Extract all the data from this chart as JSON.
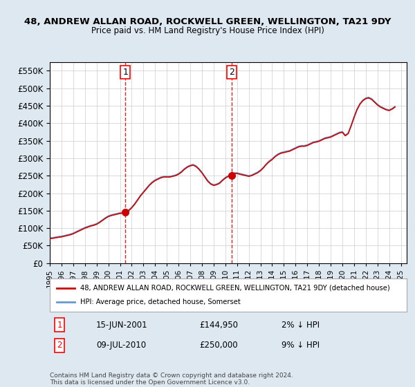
{
  "title": "48, ANDREW ALLAN ROAD, ROCKWELL GREEN, WELLINGTON, TA21 9DY",
  "subtitle": "Price paid vs. HM Land Registry's House Price Index (HPI)",
  "ylabel_vals": [
    0,
    50000,
    100000,
    150000,
    200000,
    250000,
    300000,
    350000,
    400000,
    450000,
    500000,
    550000
  ],
  "ylim": [
    0,
    575000
  ],
  "xlim_start": 1995.0,
  "xlim_end": 2025.5,
  "sale1_date": 2001.45,
  "sale1_price": 144950,
  "sale1_label": "1",
  "sale1_date_str": "15-JUN-2001",
  "sale1_price_str": "£144,950",
  "sale1_hpi_str": "2% ↓ HPI",
  "sale2_date": 2010.52,
  "sale2_price": 250000,
  "sale2_label": "2",
  "sale2_date_str": "09-JUL-2010",
  "sale2_price_str": "£250,000",
  "sale2_hpi_str": "9% ↓ HPI",
  "red_line_color": "#cc0000",
  "blue_line_color": "#6699cc",
  "bg_color": "#dde8f0",
  "plot_bg": "#ffffff",
  "grid_color": "#cccccc",
  "legend_label_red": "48, ANDREW ALLAN ROAD, ROCKWELL GREEN, WELLINGTON, TA21 9DY (detached house)",
  "legend_label_blue": "HPI: Average price, detached house, Somerset",
  "footer": "Contains HM Land Registry data © Crown copyright and database right 2024.\nThis data is licensed under the Open Government Licence v3.0.",
  "hpi_x": [
    1995.0,
    1995.25,
    1995.5,
    1995.75,
    1996.0,
    1996.25,
    1996.5,
    1996.75,
    1997.0,
    1997.25,
    1997.5,
    1997.75,
    1998.0,
    1998.25,
    1998.5,
    1998.75,
    1999.0,
    1999.25,
    1999.5,
    1999.75,
    2000.0,
    2000.25,
    2000.5,
    2000.75,
    2001.0,
    2001.25,
    2001.5,
    2001.75,
    2002.0,
    2002.25,
    2002.5,
    2002.75,
    2003.0,
    2003.25,
    2003.5,
    2003.75,
    2004.0,
    2004.25,
    2004.5,
    2004.75,
    2005.0,
    2005.25,
    2005.5,
    2005.75,
    2006.0,
    2006.25,
    2006.5,
    2006.75,
    2007.0,
    2007.25,
    2007.5,
    2007.75,
    2008.0,
    2008.25,
    2008.5,
    2008.75,
    2009.0,
    2009.25,
    2009.5,
    2009.75,
    2010.0,
    2010.25,
    2010.5,
    2010.75,
    2011.0,
    2011.25,
    2011.5,
    2011.75,
    2012.0,
    2012.25,
    2012.5,
    2012.75,
    2013.0,
    2013.25,
    2013.5,
    2013.75,
    2014.0,
    2014.25,
    2014.5,
    2014.75,
    2015.0,
    2015.25,
    2015.5,
    2015.75,
    2016.0,
    2016.25,
    2016.5,
    2016.75,
    2017.0,
    2017.25,
    2017.5,
    2017.75,
    2018.0,
    2018.25,
    2018.5,
    2018.75,
    2019.0,
    2019.25,
    2019.5,
    2019.75,
    2020.0,
    2020.25,
    2020.5,
    2020.75,
    2021.0,
    2021.25,
    2021.5,
    2021.75,
    2022.0,
    2022.25,
    2022.5,
    2022.75,
    2023.0,
    2023.25,
    2023.5,
    2023.75,
    2024.0,
    2024.25,
    2024.5
  ],
  "hpi_y": [
    72000,
    73000,
    74500,
    76000,
    77000,
    79000,
    81000,
    83000,
    86000,
    90000,
    94000,
    98000,
    102000,
    105000,
    108000,
    110000,
    113000,
    118000,
    124000,
    130000,
    135000,
    138000,
    140000,
    142000,
    144000,
    145000,
    147000,
    152000,
    160000,
    170000,
    182000,
    194000,
    204000,
    214000,
    224000,
    232000,
    238000,
    242000,
    246000,
    248000,
    248000,
    248000,
    250000,
    252000,
    256000,
    262000,
    270000,
    276000,
    280000,
    282000,
    278000,
    270000,
    260000,
    248000,
    236000,
    228000,
    224000,
    226000,
    230000,
    238000,
    245000,
    250000,
    255000,
    258000,
    258000,
    256000,
    254000,
    252000,
    250000,
    252000,
    256000,
    260000,
    266000,
    274000,
    284000,
    292000,
    298000,
    306000,
    312000,
    316000,
    318000,
    320000,
    322000,
    326000,
    330000,
    334000,
    336000,
    336000,
    338000,
    342000,
    346000,
    348000,
    350000,
    354000,
    358000,
    360000,
    362000,
    366000,
    370000,
    374000,
    376000,
    366000,
    372000,
    394000,
    418000,
    440000,
    456000,
    466000,
    472000,
    474000,
    470000,
    462000,
    454000,
    448000,
    444000,
    440000,
    438000,
    442000,
    448000
  ],
  "red_x": [
    1995.0,
    1995.25,
    1995.5,
    1995.75,
    1996.0,
    1996.25,
    1996.5,
    1996.75,
    1997.0,
    1997.25,
    1997.5,
    1997.75,
    1998.0,
    1998.25,
    1998.5,
    1998.75,
    1999.0,
    1999.25,
    1999.5,
    1999.75,
    2000.0,
    2000.25,
    2000.5,
    2000.75,
    2001.0,
    2001.25,
    2001.5,
    2001.75,
    2002.0,
    2002.25,
    2002.5,
    2002.75,
    2003.0,
    2003.25,
    2003.5,
    2003.75,
    2004.0,
    2004.25,
    2004.5,
    2004.75,
    2005.0,
    2005.25,
    2005.5,
    2005.75,
    2006.0,
    2006.25,
    2006.5,
    2006.75,
    2007.0,
    2007.25,
    2007.5,
    2007.75,
    2008.0,
    2008.25,
    2008.5,
    2008.75,
    2009.0,
    2009.25,
    2009.5,
    2009.75,
    2010.0,
    2010.25,
    2010.5,
    2010.75,
    2011.0,
    2011.25,
    2011.5,
    2011.75,
    2012.0,
    2012.25,
    2012.5,
    2012.75,
    2013.0,
    2013.25,
    2013.5,
    2013.75,
    2014.0,
    2014.25,
    2014.5,
    2014.75,
    2015.0,
    2015.25,
    2015.5,
    2015.75,
    2016.0,
    2016.25,
    2016.5,
    2016.75,
    2017.0,
    2017.25,
    2017.5,
    2017.75,
    2018.0,
    2018.25,
    2018.5,
    2018.75,
    2019.0,
    2019.25,
    2019.5,
    2019.75,
    2020.0,
    2020.25,
    2020.5,
    2020.75,
    2021.0,
    2021.25,
    2021.5,
    2021.75,
    2022.0,
    2022.25,
    2022.5,
    2022.75,
    2023.0,
    2023.25,
    2023.5,
    2023.75,
    2024.0,
    2024.25,
    2024.5
  ],
  "red_y": [
    70000,
    71000,
    72500,
    74000,
    75000,
    77000,
    79000,
    81000,
    84000,
    88000,
    92000,
    96000,
    100000,
    103000,
    106000,
    108000,
    111000,
    116000,
    122000,
    128000,
    133000,
    136000,
    138000,
    140000,
    142000,
    143000,
    144950,
    150000,
    158000,
    168000,
    180000,
    192000,
    202000,
    212000,
    222000,
    230000,
    236000,
    240000,
    244000,
    246000,
    246000,
    246000,
    248000,
    250000,
    254000,
    260000,
    268000,
    274000,
    278000,
    280000,
    276000,
    268000,
    258000,
    246000,
    234000,
    226000,
    222000,
    224000,
    228000,
    236000,
    243000,
    248000,
    250000,
    256000,
    256000,
    254000,
    252000,
    250000,
    248000,
    250000,
    254000,
    258000,
    264000,
    272000,
    282000,
    290000,
    296000,
    304000,
    310000,
    314000,
    316000,
    318000,
    320000,
    324000,
    328000,
    332000,
    334000,
    334000,
    336000,
    340000,
    344000,
    346000,
    348000,
    352000,
    356000,
    358000,
    360000,
    364000,
    368000,
    372000,
    374000,
    364000,
    370000,
    392000,
    416000,
    438000,
    454000,
    464000,
    470000,
    472000,
    468000,
    460000,
    452000,
    446000,
    442000,
    438000,
    436000,
    440000,
    446000
  ]
}
